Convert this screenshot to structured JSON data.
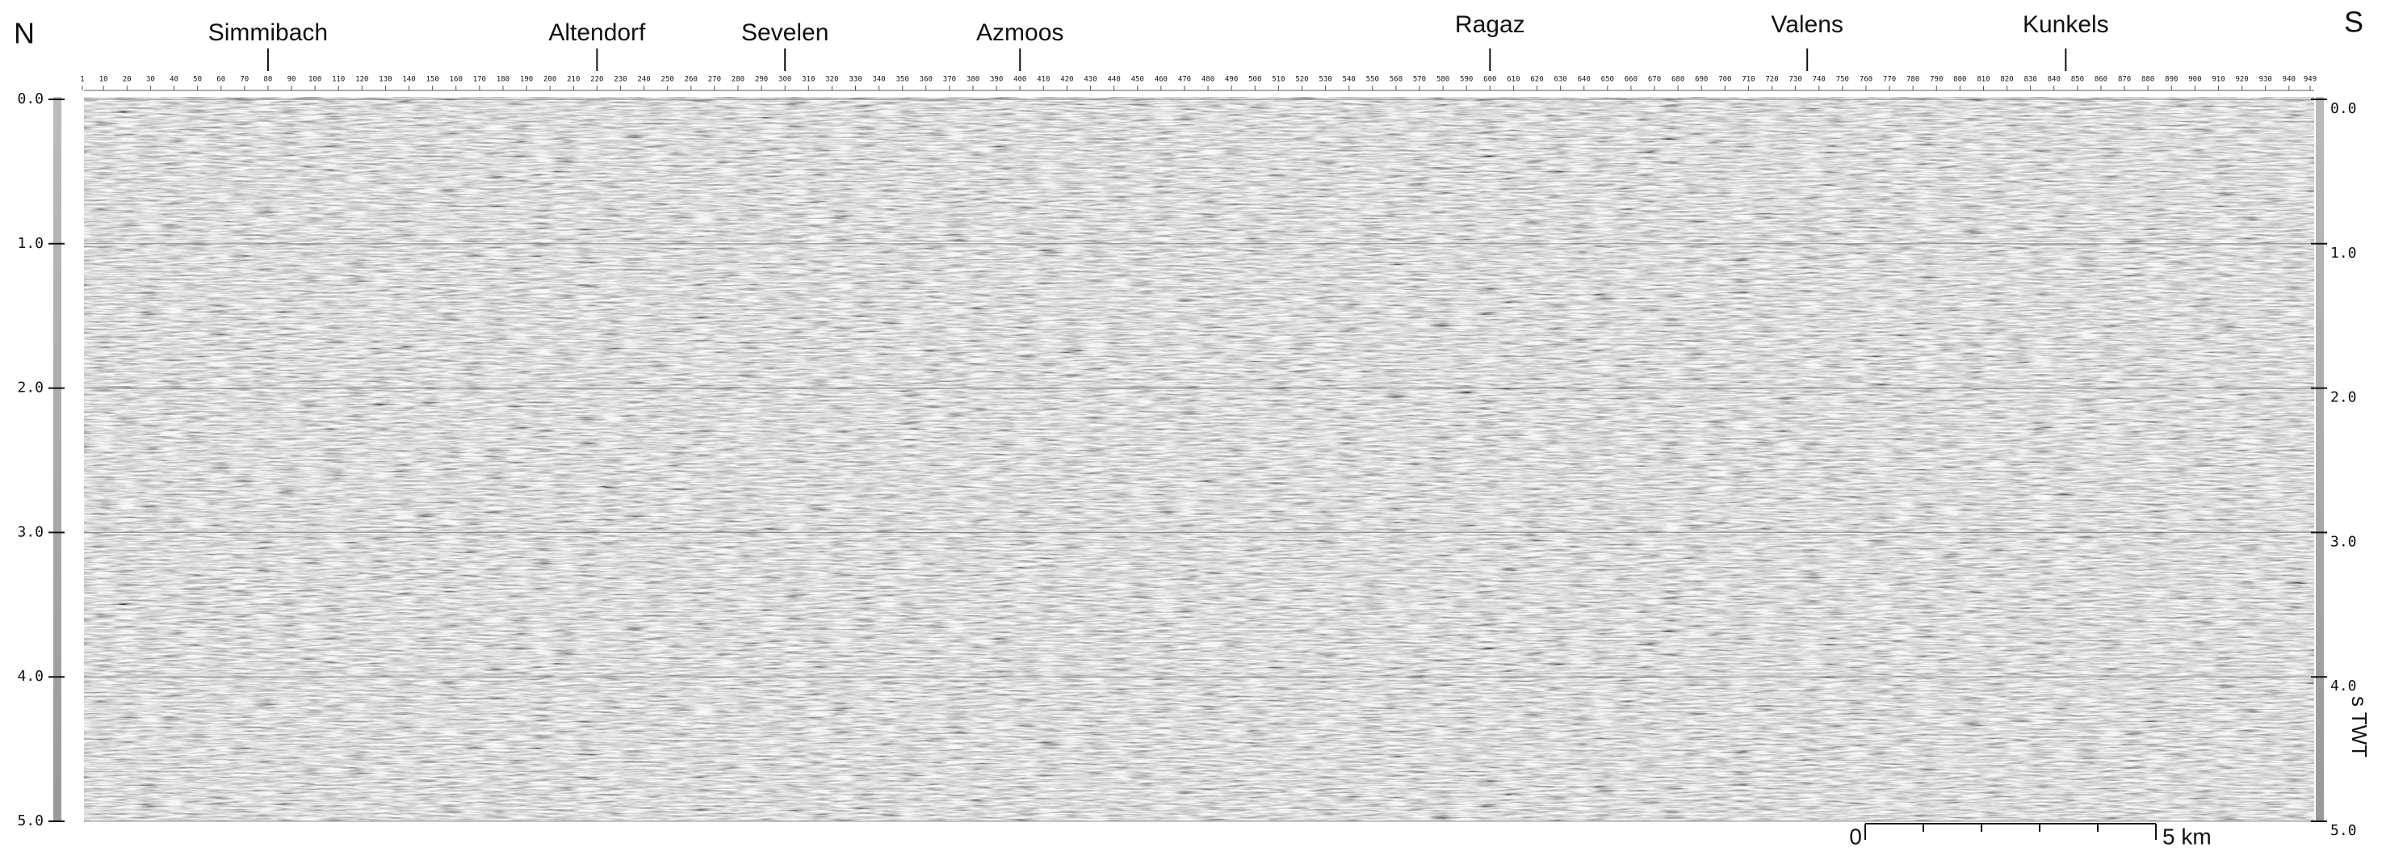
{
  "header": {
    "north": "N",
    "south": "S"
  },
  "locations": [
    {
      "name": "Simmibach",
      "shotpoint": 80
    },
    {
      "name": "Altendorf",
      "shotpoint": 220
    },
    {
      "name": "Sevelen",
      "shotpoint": 300
    },
    {
      "name": "Azmoos",
      "shotpoint": 400
    },
    {
      "name": "Ragaz",
      "shotpoint": 600
    },
    {
      "name": "Valens",
      "shotpoint": 735
    },
    {
      "name": "Kunkels",
      "shotpoint": 845
    }
  ],
  "shotpoint_axis": {
    "lim": [
      1,
      949
    ],
    "ticks": [
      1,
      10,
      20,
      30,
      40,
      50,
      60,
      70,
      80,
      90,
      100,
      110,
      120,
      130,
      140,
      150,
      160,
      170,
      180,
      190,
      200,
      210,
      220,
      230,
      240,
      250,
      260,
      270,
      280,
      290,
      300,
      310,
      320,
      330,
      340,
      350,
      360,
      370,
      380,
      390,
      400,
      410,
      420,
      430,
      440,
      450,
      460,
      470,
      480,
      490,
      500,
      510,
      520,
      530,
      540,
      550,
      560,
      570,
      580,
      590,
      600,
      610,
      620,
      630,
      640,
      650,
      660,
      670,
      680,
      690,
      700,
      710,
      720,
      730,
      740,
      750,
      760,
      770,
      780,
      790,
      800,
      810,
      820,
      830,
      840,
      850,
      860,
      870,
      880,
      890,
      900,
      910,
      920,
      930,
      940,
      949
    ]
  },
  "time_axis": {
    "lim": [
      0,
      5
    ],
    "ticks": [
      {
        "value": 0,
        "label": "0.0"
      },
      {
        "value": 1,
        "label": "1.0"
      },
      {
        "value": 2,
        "label": "2.0"
      },
      {
        "value": 3,
        "label": "3.0"
      },
      {
        "value": 4,
        "label": "4.0"
      },
      {
        "value": 5,
        "label": "5.0"
      }
    ],
    "unit": "s TWT"
  },
  "scale_bar": {
    "start_label": "0",
    "end_label": "5 km"
  }
}
